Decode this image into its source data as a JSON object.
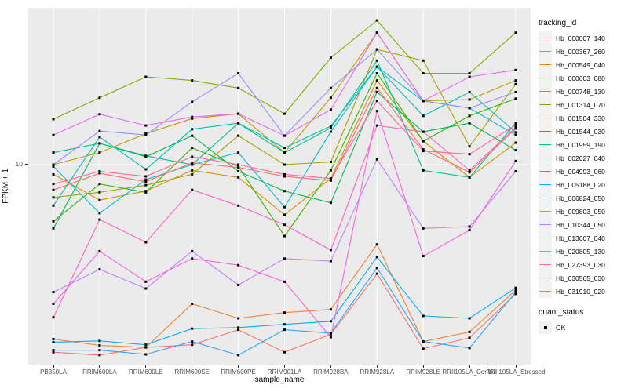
{
  "chart_data": {
    "type": "line",
    "title": "",
    "xlabel": "sample_name",
    "ylabel": "FPKM + 1",
    "y_scale": "log10",
    "ylim": [
      1.2,
      50
    ],
    "y_tick_labels": [
      "10"
    ],
    "grid": true,
    "panel_bg": "#EBEBEB",
    "grid_color": "#FFFFFF",
    "point_color": "#000000",
    "legend_position": "right",
    "categories": [
      "PB350LA",
      "RRIM600LA",
      "RRIM600LE",
      "RRIM600SE",
      "RRIM600PE",
      "RRIM901LA",
      "RRIM928BA",
      "RRIM928LA",
      "RRIM928LE",
      "RRII105LA_Control",
      "RRII105LA_Stressed"
    ],
    "series": [
      {
        "name": "Hb_000007_140",
        "color": "#F8766D",
        "values": [
          1.3,
          1.26,
          1.37,
          1.41,
          1.66,
          1.3,
          1.58,
          3.05,
          1.35,
          1.52,
          2.45
        ]
      },
      {
        "name": "Hb_000367_260",
        "color": "#EA8331",
        "values": [
          1.5,
          1.4,
          1.37,
          2.2,
          1.88,
          2.0,
          2.07,
          4.2,
          1.46,
          1.62,
          2.55
        ]
      },
      {
        "name": "Hb_000549_040",
        "color": "#D89000",
        "values": [
          9.0,
          6.8,
          7.5,
          9.4,
          8.7,
          5.8,
          8.6,
          25,
          12.9,
          8.7,
          12.7
        ]
      },
      {
        "name": "Hb_000603_080",
        "color": "#C09B00",
        "values": [
          10.0,
          11.4,
          14.0,
          16.5,
          17.4,
          11.4,
          20.7,
          42,
          20.0,
          20.3,
          25.0
        ]
      },
      {
        "name": "Hb_000748_130",
        "color": "#A3A500",
        "values": [
          7.0,
          7.4,
          8.0,
          9.0,
          13.7,
          10.0,
          10.3,
          35,
          31,
          12.2,
          24
        ]
      },
      {
        "name": "Hb_001314_070",
        "color": "#7CAE00",
        "values": [
          16.4,
          20.7,
          26,
          25,
          23,
          17.4,
          32,
          48,
          27,
          27,
          42
        ]
      },
      {
        "name": "Hb_001504_330",
        "color": "#39B600",
        "values": [
          5.4,
          8.1,
          7.4,
          12.0,
          9.8,
          4.6,
          9.4,
          27,
          12.9,
          17.0,
          20.5
        ]
      },
      {
        "name": "Hb_001544_030",
        "color": "#00BB4E",
        "values": [
          5.0,
          12.6,
          10.9,
          13.7,
          9.3,
          7.5,
          6.6,
          22,
          14.3,
          15.7,
          11.7
        ]
      },
      {
        "name": "Hb_001959_190",
        "color": "#00C087",
        "values": [
          11.4,
          12.6,
          11.0,
          10.0,
          15.7,
          11.4,
          14.9,
          31,
          9.4,
          8.7,
          15.7
        ]
      },
      {
        "name": "Hb_002027_040",
        "color": "#00C0B2",
        "values": [
          6.4,
          13.5,
          9.5,
          14.7,
          15.7,
          12.0,
          15.2,
          29,
          17.0,
          22.0,
          14.2
        ]
      },
      {
        "name": "Hb_004993_060",
        "color": "#00BCD6",
        "values": [
          9.8,
          5.9,
          8.5,
          10.0,
          11.4,
          6.3,
          14.3,
          29,
          20.0,
          18.5,
          13.8
        ]
      },
      {
        "name": "Hb_005188_020",
        "color": "#00B2F3",
        "values": [
          1.45,
          1.47,
          1.41,
          1.68,
          1.7,
          1.76,
          1.82,
          3.66,
          1.93,
          1.88,
          2.62
        ]
      },
      {
        "name": "Hb_006824_050",
        "color": "#2FA4FF",
        "values": [
          1.33,
          1.33,
          1.27,
          1.46,
          1.26,
          1.66,
          1.6,
          3.25,
          1.46,
          1.36,
          2.5
        ]
      },
      {
        "name": "Hb_009803_050",
        "color": "#9590FF",
        "values": [
          10.0,
          14.4,
          13.8,
          19.8,
          27,
          13.7,
          23,
          35,
          20,
          18.5,
          22
        ]
      },
      {
        "name": "Hb_010344_050",
        "color": "#C77CFF",
        "values": [
          2.5,
          3.2,
          2.6,
          3.9,
          2.7,
          3.6,
          3.5,
          10.6,
          5.0,
          5.1,
          9.3
        ]
      },
      {
        "name": "Hb_013607_040",
        "color": "#E76BF3",
        "values": [
          13.8,
          17.3,
          15.3,
          16.8,
          17.4,
          13.7,
          18.2,
          42,
          20,
          26,
          28
        ]
      },
      {
        "name": "Hb_020805_130",
        "color": "#FA62DB",
        "values": [
          2.2,
          3.9,
          2.8,
          3.6,
          3.35,
          2.8,
          1.53,
          17.9,
          3.7,
          4.9,
          10.4
        ]
      },
      {
        "name": "Hb_027393_030",
        "color": "#FF61C2",
        "values": [
          1.9,
          5.5,
          4.3,
          7.6,
          6.4,
          5.2,
          3.95,
          15.3,
          14.3,
          9.4,
          15.0
        ]
      },
      {
        "name": "Hb_030565_030",
        "color": "#FF689E",
        "values": [
          8.1,
          9.3,
          8.8,
          10.9,
          10.0,
          9.0,
          8.6,
          20,
          11.6,
          11.2,
          15.4
        ]
      },
      {
        "name": "Hb_031910_020",
        "color": "#FF6C67",
        "values": [
          7.6,
          9.1,
          8.3,
          10.2,
          9.7,
          8.8,
          8.4,
          23,
          11.8,
          9.2,
          14.8
        ]
      }
    ],
    "legend": {
      "color_title": "tracking_id",
      "shape_title": "quant_status",
      "shape_items": [
        {
          "label": "OK"
        }
      ]
    }
  }
}
